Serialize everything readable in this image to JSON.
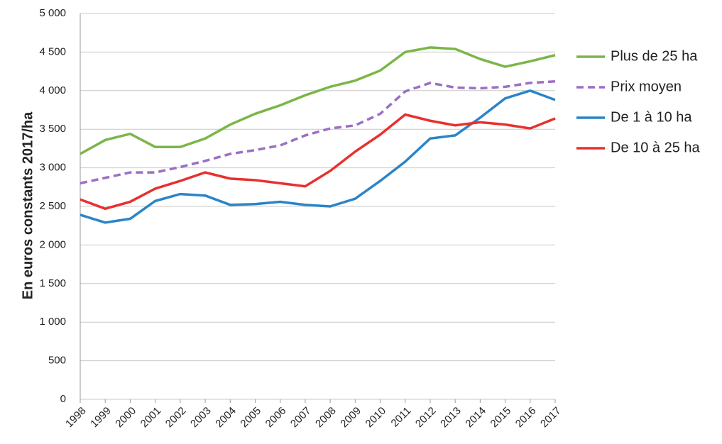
{
  "chart_data": {
    "type": "line",
    "y_label": "En euros constants 2017/ha",
    "categories": [
      "1998",
      "1999",
      "2000",
      "2001",
      "2002",
      "2003",
      "2004",
      "2005",
      "2006",
      "2007",
      "2008",
      "2009",
      "2010",
      "2011",
      "2012",
      "2013",
      "2014",
      "2015",
      "2016",
      "2017"
    ],
    "series": [
      {
        "name": "Plus de 25 ha",
        "color": "#7ab648",
        "dash": "solid",
        "values": [
          3180,
          3360,
          3440,
          3270,
          3270,
          3380,
          3560,
          3700,
          3810,
          3940,
          4050,
          4130,
          4260,
          4500,
          4560,
          4540,
          4410,
          4310,
          4380,
          4460
        ]
      },
      {
        "name": "Prix moyen",
        "color": "#9b6fc4",
        "dash": "dashed",
        "values": [
          2800,
          2870,
          2940,
          2940,
          3010,
          3090,
          3180,
          3230,
          3290,
          3420,
          3510,
          3550,
          3700,
          3990,
          4100,
          4040,
          4030,
          4050,
          4100,
          4120
        ]
      },
      {
        "name": "De 1 à 10 ha",
        "color": "#2a84c9",
        "dash": "solid",
        "values": [
          2390,
          2290,
          2340,
          2570,
          2660,
          2640,
          2520,
          2530,
          2560,
          2520,
          2500,
          2600,
          2830,
          3080,
          3380,
          3420,
          3650,
          3900,
          4000,
          3880
        ]
      },
      {
        "name": "De 10 à 25 ha",
        "color": "#e8302e",
        "dash": "solid",
        "values": [
          2590,
          2470,
          2560,
          2730,
          2830,
          2940,
          2860,
          2840,
          2800,
          2760,
          2960,
          3210,
          3430,
          3690,
          3610,
          3550,
          3590,
          3560,
          3510,
          3640
        ]
      }
    ],
    "ylim": [
      0,
      5000
    ],
    "yticks": [
      0,
      500,
      {
        "value": 1000,
        "label": "1 000"
      },
      {
        "value": 1500,
        "label": "1 500"
      },
      {
        "value": 2000,
        "label": "2 000"
      },
      {
        "value": 2500,
        "label": "2 500"
      },
      {
        "value": 3000,
        "label": "3 000"
      },
      {
        "value": 3500,
        "label": "3 500"
      },
      {
        "value": 4000,
        "label": "4 000"
      },
      {
        "value": 4500,
        "label": "4 500"
      },
      {
        "value": 5000,
        "label": "5 000"
      }
    ],
    "grid": true,
    "legend": "right"
  }
}
